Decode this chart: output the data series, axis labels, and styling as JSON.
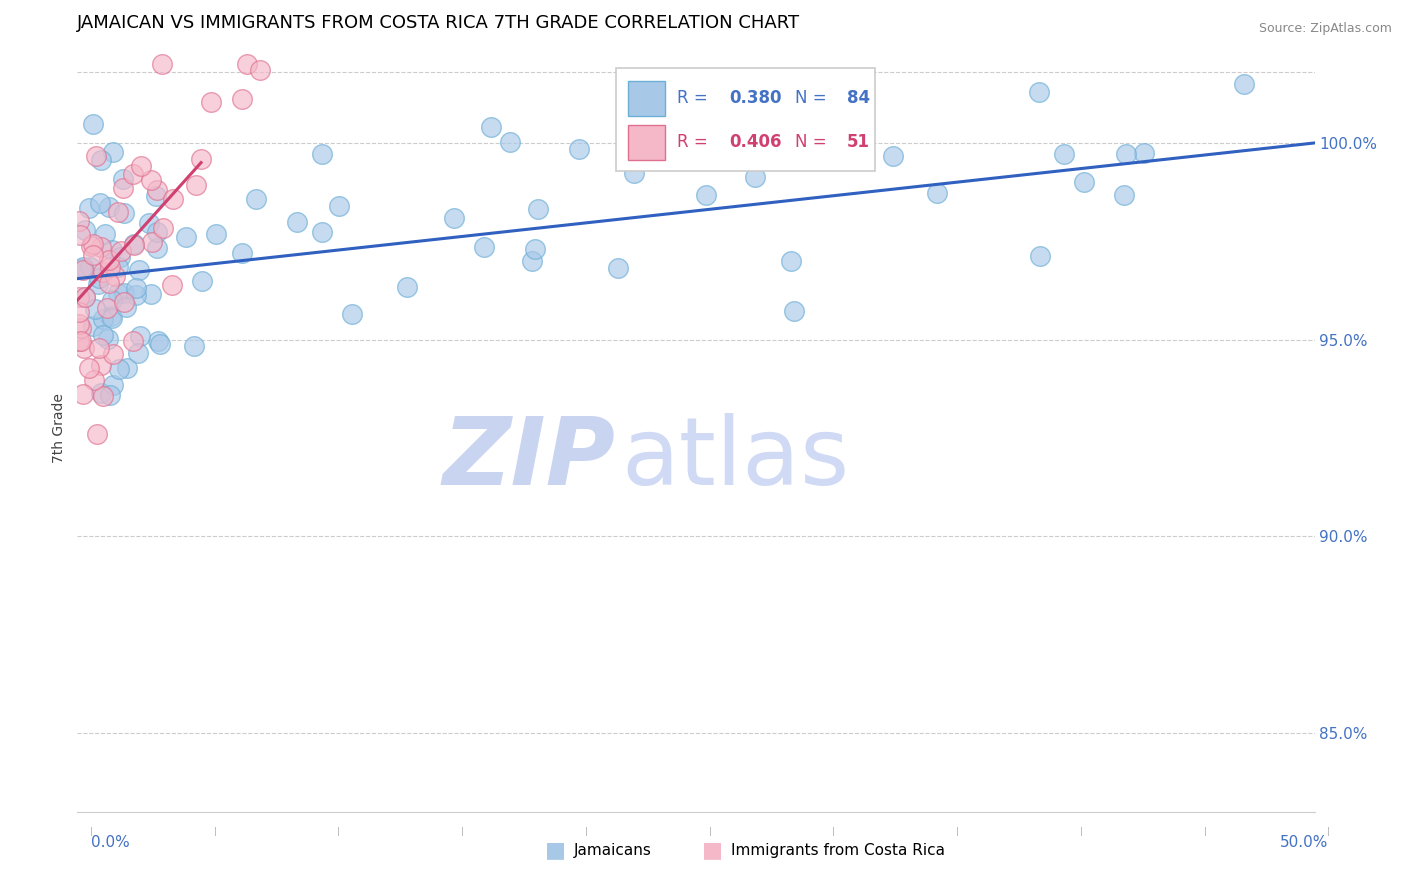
{
  "title": "JAMAICAN VS IMMIGRANTS FROM COSTA RICA 7TH GRADE CORRELATION CHART",
  "source_text": "Source: ZipAtlas.com",
  "ylabel": "7th Grade",
  "xlim": [
    0.0,
    50.0
  ],
  "ylim": [
    83.0,
    102.5
  ],
  "yticks": [
    85.0,
    90.0,
    95.0,
    100.0
  ],
  "ytick_labels": [
    "85.0%",
    "90.0%",
    "95.0%",
    "100.0%"
  ],
  "blue_R": 0.38,
  "blue_N": 84,
  "pink_R": 0.406,
  "pink_N": 51,
  "blue_scatter_color": "#a8c8e8",
  "blue_scatter_edge": "#6baed6",
  "pink_scatter_color": "#f4b8c8",
  "pink_scatter_edge": "#e07090",
  "blue_trend_color": "#3060c0",
  "pink_trend_color": "#d04070",
  "blue_trend_x0": 0.0,
  "blue_trend_y0": 96.55,
  "blue_trend_x1": 50.0,
  "blue_trend_y1": 100.0,
  "pink_trend_x0": 0.0,
  "pink_trend_y0": 96.0,
  "pink_trend_x1": 5.0,
  "pink_trend_y1": 99.5,
  "grid_color": "#cccccc",
  "top_line_y": 101.8,
  "legend_face": "#ffffff",
  "legend_edge": "#cccccc",
  "watermark_zip_color": "#c8d4f0",
  "watermark_atlas_color": "#d0daf5",
  "title_fontsize": 13,
  "source_fontsize": 9,
  "tick_color": "#4472c4",
  "tick_fontsize": 11
}
